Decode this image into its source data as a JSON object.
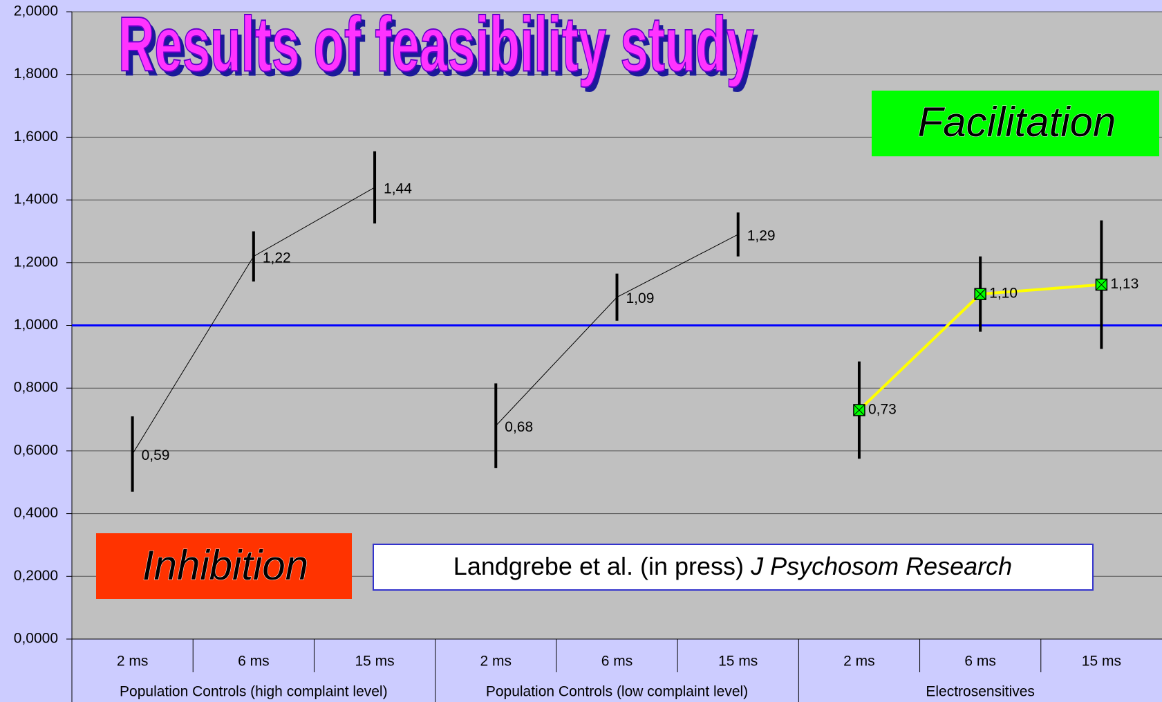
{
  "chart_data": {
    "type": "line",
    "title": "Results of feasibility study",
    "annotations": {
      "facilitation": "Facilitation",
      "inhibition": "Inhibition",
      "citation": "Landgrebe et al. (in press)",
      "journal": "J Psychosom Research"
    },
    "categories": [
      "2 ms",
      "6 ms",
      "15 ms",
      "2 ms",
      "6 ms",
      "15 ms",
      "2 ms",
      "6 ms",
      "15 ms"
    ],
    "groups": [
      "Population Controls (high complaint level)",
      "Population Controls (low complaint level)",
      "Electrosensitives"
    ],
    "series": [
      {
        "color": "#000000",
        "width": 1,
        "marker": false,
        "values": [
          0.59,
          1.22,
          1.44,
          null,
          null,
          null,
          null,
          null,
          null
        ],
        "value_labels": [
          "0,59",
          "1,22",
          "1,44",
          null,
          null,
          null,
          null,
          null,
          null
        ],
        "errors": [
          0.12,
          0.08,
          0.115,
          null,
          null,
          null,
          null,
          null,
          null
        ]
      },
      {
        "color": "#000000",
        "width": 1,
        "marker": false,
        "values": [
          null,
          null,
          null,
          0.68,
          1.09,
          1.29,
          null,
          null,
          null
        ],
        "value_labels": [
          null,
          null,
          null,
          "0,68",
          "1,09",
          "1,29",
          null,
          null,
          null
        ],
        "errors": [
          null,
          null,
          null,
          0.135,
          0.075,
          0.07,
          null,
          null,
          null
        ]
      },
      {
        "color": "#ffff00",
        "width": 4,
        "marker": true,
        "marker_color": "#00ff00",
        "values": [
          null,
          null,
          null,
          null,
          null,
          null,
          0.73,
          1.1,
          1.13
        ],
        "value_labels": [
          null,
          null,
          null,
          null,
          null,
          null,
          "0,73",
          "1,10",
          "1,13"
        ],
        "errors": [
          null,
          null,
          null,
          null,
          null,
          null,
          0.155,
          0.12,
          0.205
        ]
      }
    ],
    "reference_line": 1,
    "reference_color": "#0000ff",
    "ylim": [
      0,
      2
    ],
    "yticks": [
      {
        "value": 0,
        "label": "0,0000"
      },
      {
        "value": 0.2,
        "label": "0,2000"
      },
      {
        "value": 0.4,
        "label": "0,4000"
      },
      {
        "value": 0.6,
        "label": "0,6000"
      },
      {
        "value": 0.8,
        "label": "0,8000"
      },
      {
        "value": 1,
        "label": "1,0000"
      },
      {
        "value": 1.2,
        "label": "1,2000"
      },
      {
        "value": 1.4,
        "label": "1,4000"
      },
      {
        "value": 1.6,
        "label": "1,6000"
      },
      {
        "value": 1.8,
        "label": "1,8000"
      },
      {
        "value": 2,
        "label": "2,0000"
      }
    ],
    "grid": true
  }
}
